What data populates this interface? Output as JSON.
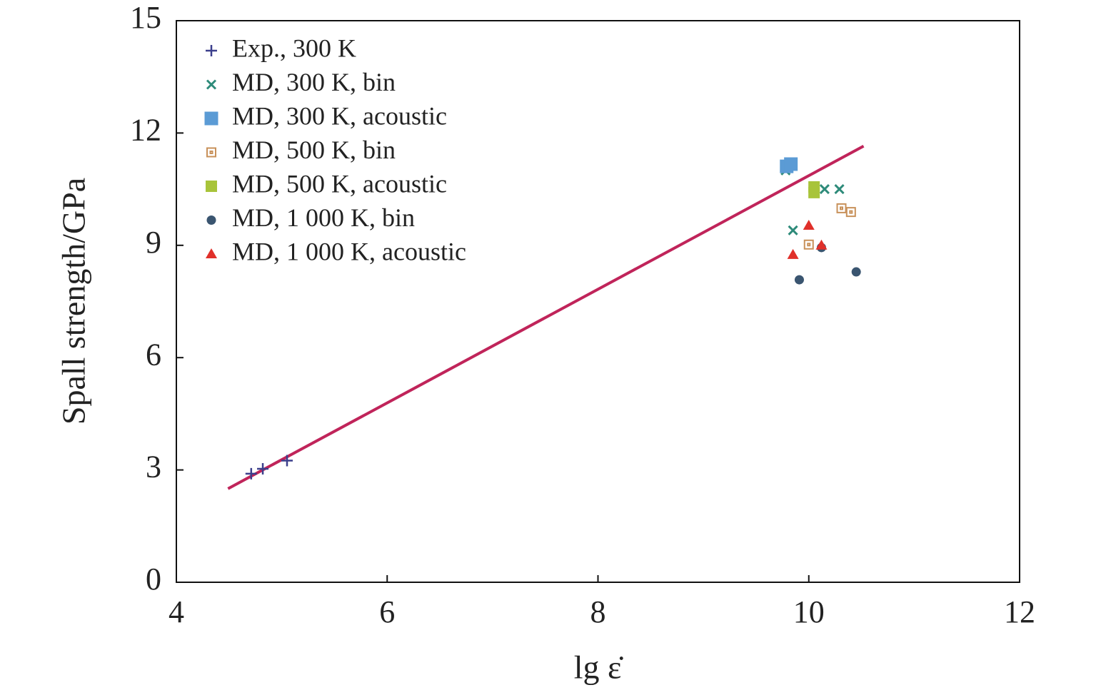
{
  "chart_data": {
    "type": "scatter",
    "x_label": "lg ε̇",
    "y_label": "Spall strength/GPa",
    "xlim": [
      4,
      12
    ],
    "ylim": [
      0,
      15
    ],
    "xticks": [
      4,
      6,
      8,
      10,
      12
    ],
    "yticks": [
      0,
      3,
      6,
      9,
      12,
      15
    ],
    "fit_line": {
      "x": [
        4.49,
        10.52
      ],
      "values": [
        2.5,
        11.65
      ],
      "color": "#c0245a"
    },
    "series": [
      {
        "name": "Exp., 300 K",
        "marker": "plus",
        "color": "#3b3f8c",
        "x": [
          4.71,
          4.82,
          5.05
        ],
        "values": [
          2.9,
          3.03,
          3.25
        ]
      },
      {
        "name": "MD, 300 K, bin",
        "marker": "x",
        "color": "#2e8b7a",
        "x": [
          9.78,
          9.85,
          10.15,
          10.29
        ],
        "values": [
          11.0,
          9.4,
          10.5,
          10.5
        ]
      },
      {
        "name": "MD, 300 K, acoustic",
        "marker": "x-square",
        "color": "#5b9bd5",
        "x": [
          9.79,
          9.83
        ],
        "values": [
          11.11,
          11.17
        ]
      },
      {
        "name": "MD, 500 K, bin",
        "marker": "square-open",
        "color": "#c8915a",
        "x": [
          10.0,
          10.31,
          10.4
        ],
        "values": [
          9.02,
          9.99,
          9.89
        ]
      },
      {
        "name": "MD, 500 K, acoustic",
        "marker": "square",
        "color": "#a8c43a",
        "x": [
          10.05,
          10.05
        ],
        "values": [
          10.56,
          10.41
        ]
      },
      {
        "name": "MD, 1 000 K, bin",
        "marker": "circle",
        "color": "#3a5570",
        "x": [
          9.91,
          10.45,
          10.12
        ],
        "values": [
          8.08,
          8.29,
          8.94
        ]
      },
      {
        "name": "MD, 1 000 K, acoustic",
        "marker": "triangle",
        "color": "#e0302a",
        "x": [
          9.85,
          10.0,
          10.12
        ],
        "values": [
          8.75,
          9.53,
          9.0
        ]
      }
    ]
  }
}
